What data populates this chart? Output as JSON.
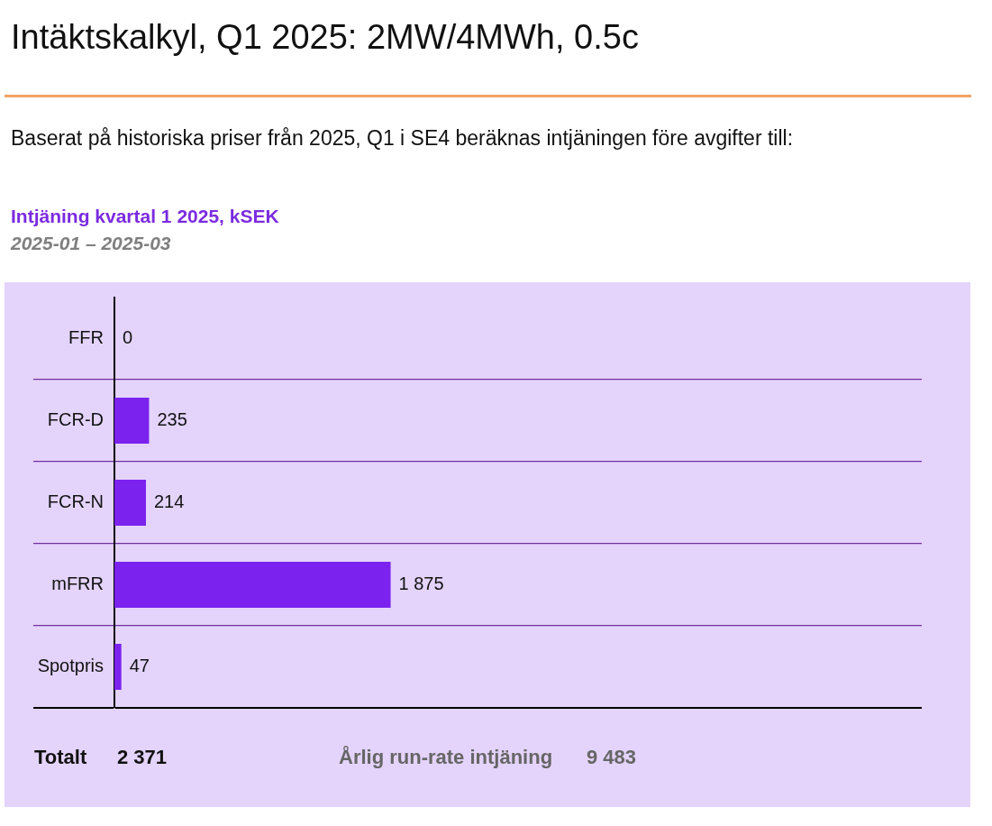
{
  "chart_data": {
    "type": "bar",
    "orientation": "horizontal",
    "title": "Intäktskalkyl, Q1 2025: 2MW/4MWh, 0.5c",
    "subtitle": "Baserat på historiska priser från 2025, Q1 i SE4 beräknas intjäningen före avgifter till:",
    "annotations": [
      "Intjäning kvartal 1 2025, kSEK",
      "2025-01 – 2025-03",
      "Totalt",
      "2 371",
      "Årlig run-rate intjäning",
      "9 483"
    ],
    "categories": [
      "FFR",
      "FCR-D",
      "FCR-N",
      "mFRR",
      "Spotpris"
    ],
    "values": [
      0,
      235,
      214,
      1875,
      47
    ],
    "value_labels": [
      "0",
      "235",
      "214",
      "1 875",
      "47"
    ],
    "color": "#7b22ee",
    "xlim": [
      0,
      5480
    ],
    "grid": "y",
    "tick_labels": "y"
  }
}
